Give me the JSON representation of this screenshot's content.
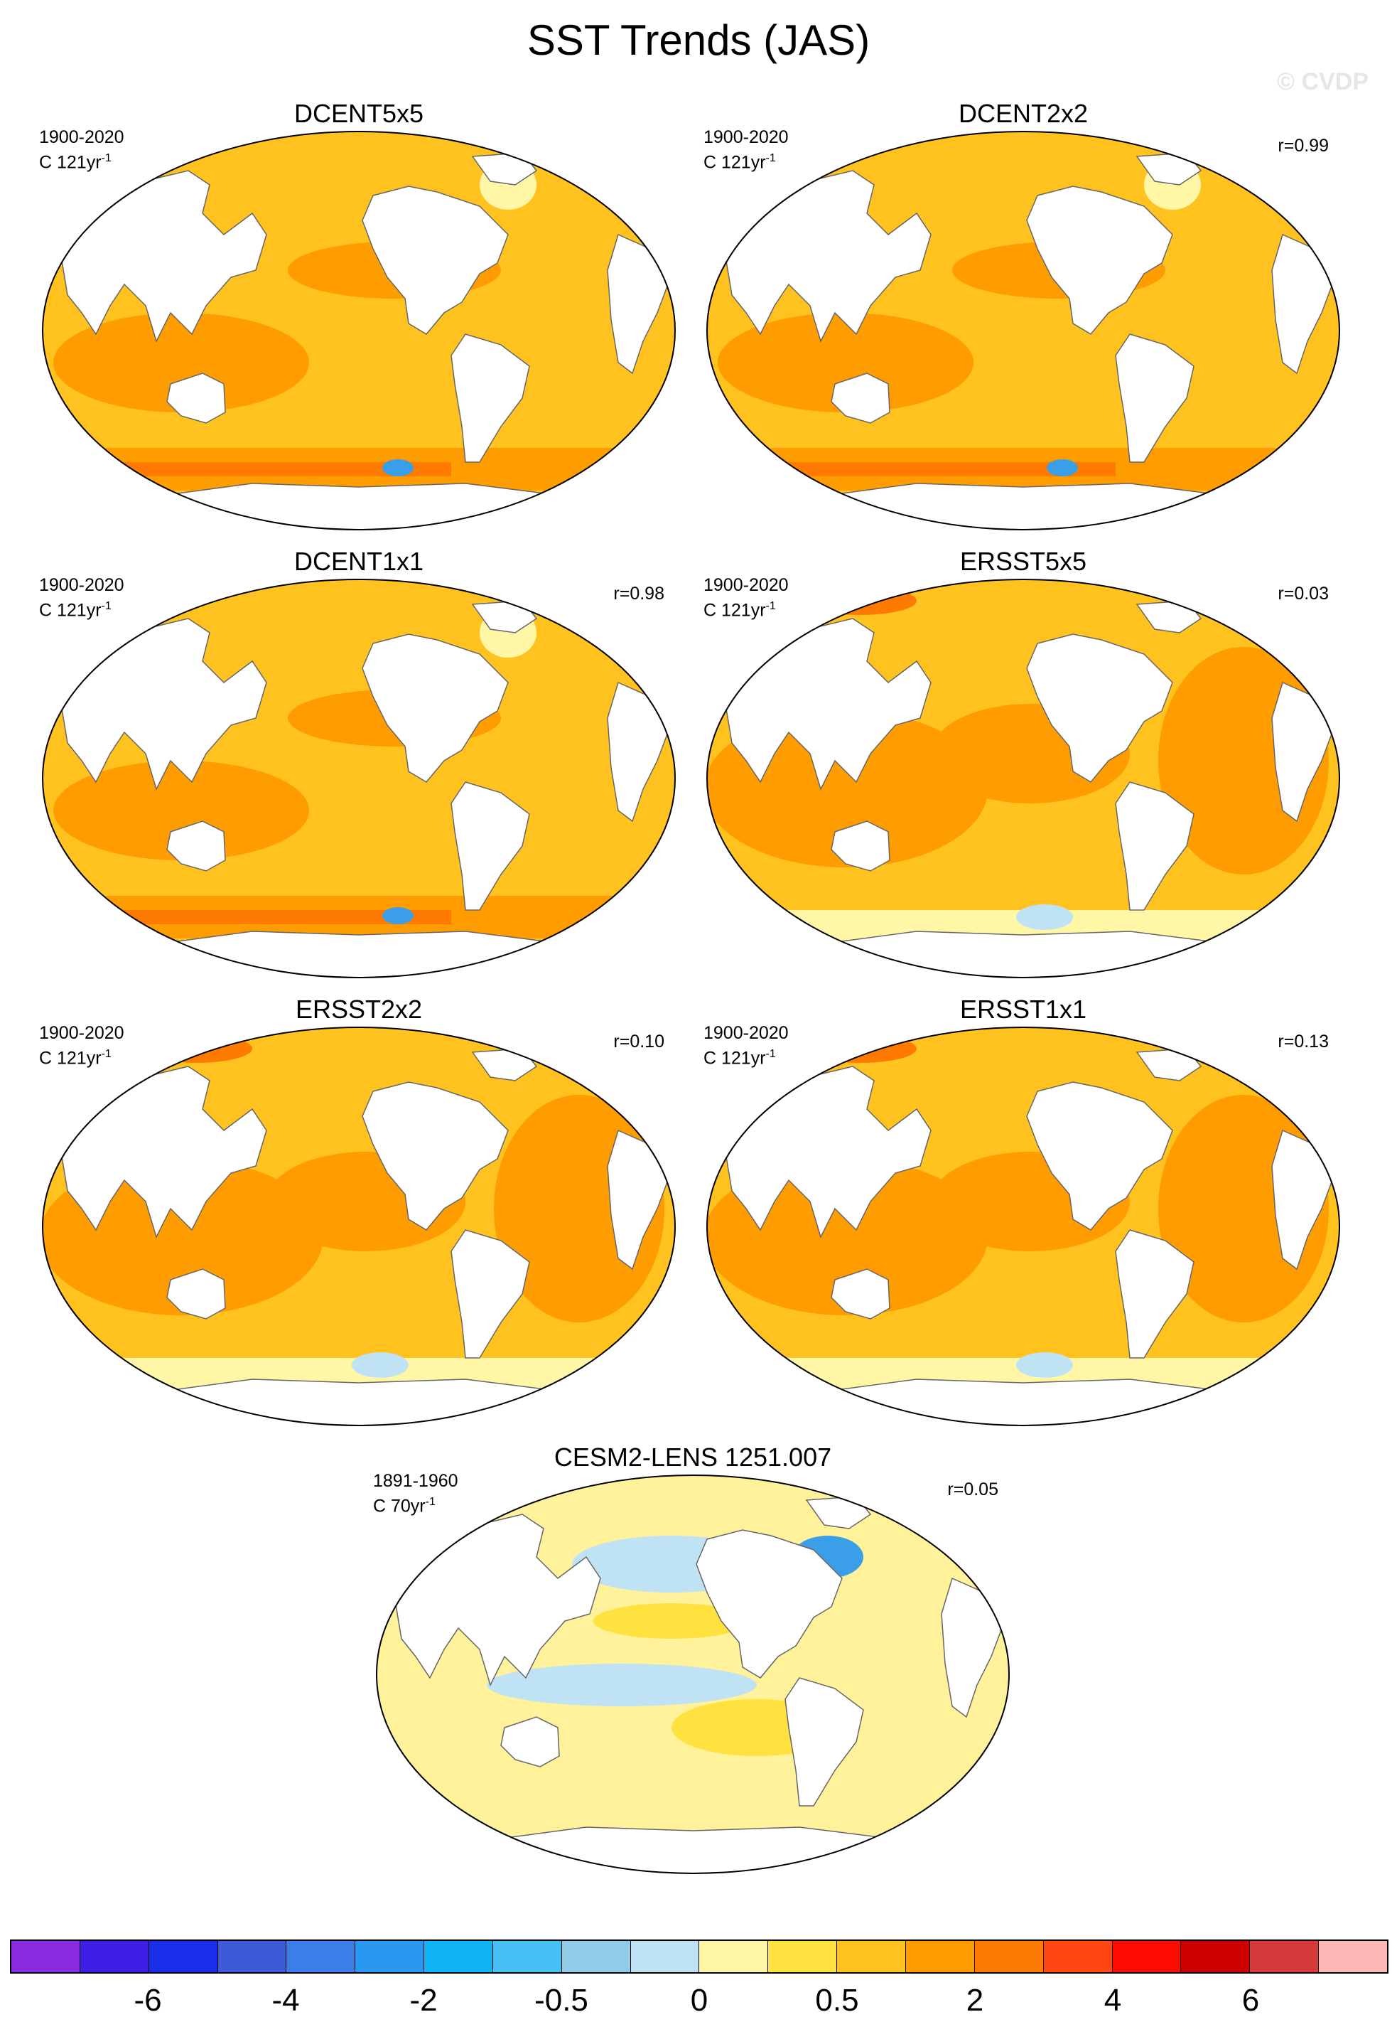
{
  "title": "SST Trends (JAS)",
  "watermark": "© CVDP",
  "panels": [
    {
      "name": "DCENT5x5",
      "period": "1900-2020",
      "units_base": "C 121yr",
      "units_exp": "-1",
      "r": ""
    },
    {
      "name": "DCENT2x2",
      "period": "1900-2020",
      "units_base": "C 121yr",
      "units_exp": "-1",
      "r": "r=0.99"
    },
    {
      "name": "DCENT1x1",
      "period": "1900-2020",
      "units_base": "C 121yr",
      "units_exp": "-1",
      "r": "r=0.98"
    },
    {
      "name": "ERSST5x5",
      "period": "1900-2020",
      "units_base": "C 121yr",
      "units_exp": "-1",
      "r": "r=0.03"
    },
    {
      "name": "ERSST2x2",
      "period": "1900-2020",
      "units_base": "C 121yr",
      "units_exp": "-1",
      "r": "r=0.10"
    },
    {
      "name": "ERSST1x1",
      "period": "1900-2020",
      "units_base": "C 121yr",
      "units_exp": "-1",
      "r": "r=0.13"
    },
    {
      "name": "CESM2-LENS 1251.007",
      "period": "1891-1960",
      "units_base": "C 70yr",
      "units_exp": "-1",
      "r": "r=0.05"
    }
  ],
  "colorbar": {
    "colors": [
      "#8a2be2",
      "#3d1ee6",
      "#1a2eea",
      "#3e5ad8",
      "#3b7ee8",
      "#2898f0",
      "#10b4f4",
      "#46c0f4",
      "#90cce8",
      "#bfe3f5",
      "#fff7a6",
      "#ffe23f",
      "#ffc21f",
      "#ff9c00",
      "#ff7a00",
      "#ff4612",
      "#ff0a00",
      "#cc0000",
      "#d63a3a",
      "#ffb6b6"
    ],
    "labels": [
      "-6",
      "-4",
      "-2",
      "-0.5",
      "0",
      "0.5",
      "2",
      "4",
      "6"
    ]
  },
  "palette": {
    "ocean_dcent": "#ffc21f",
    "ocean_dark": "#ff9c00",
    "ocean_strong": "#ff7a00",
    "cold_spot": "#3b9ee8",
    "ocean_light": "#fff7a6",
    "ocean_cesm": "#fff29a",
    "cesm_blue": "#bfe3f5",
    "land": "#ffffff"
  }
}
